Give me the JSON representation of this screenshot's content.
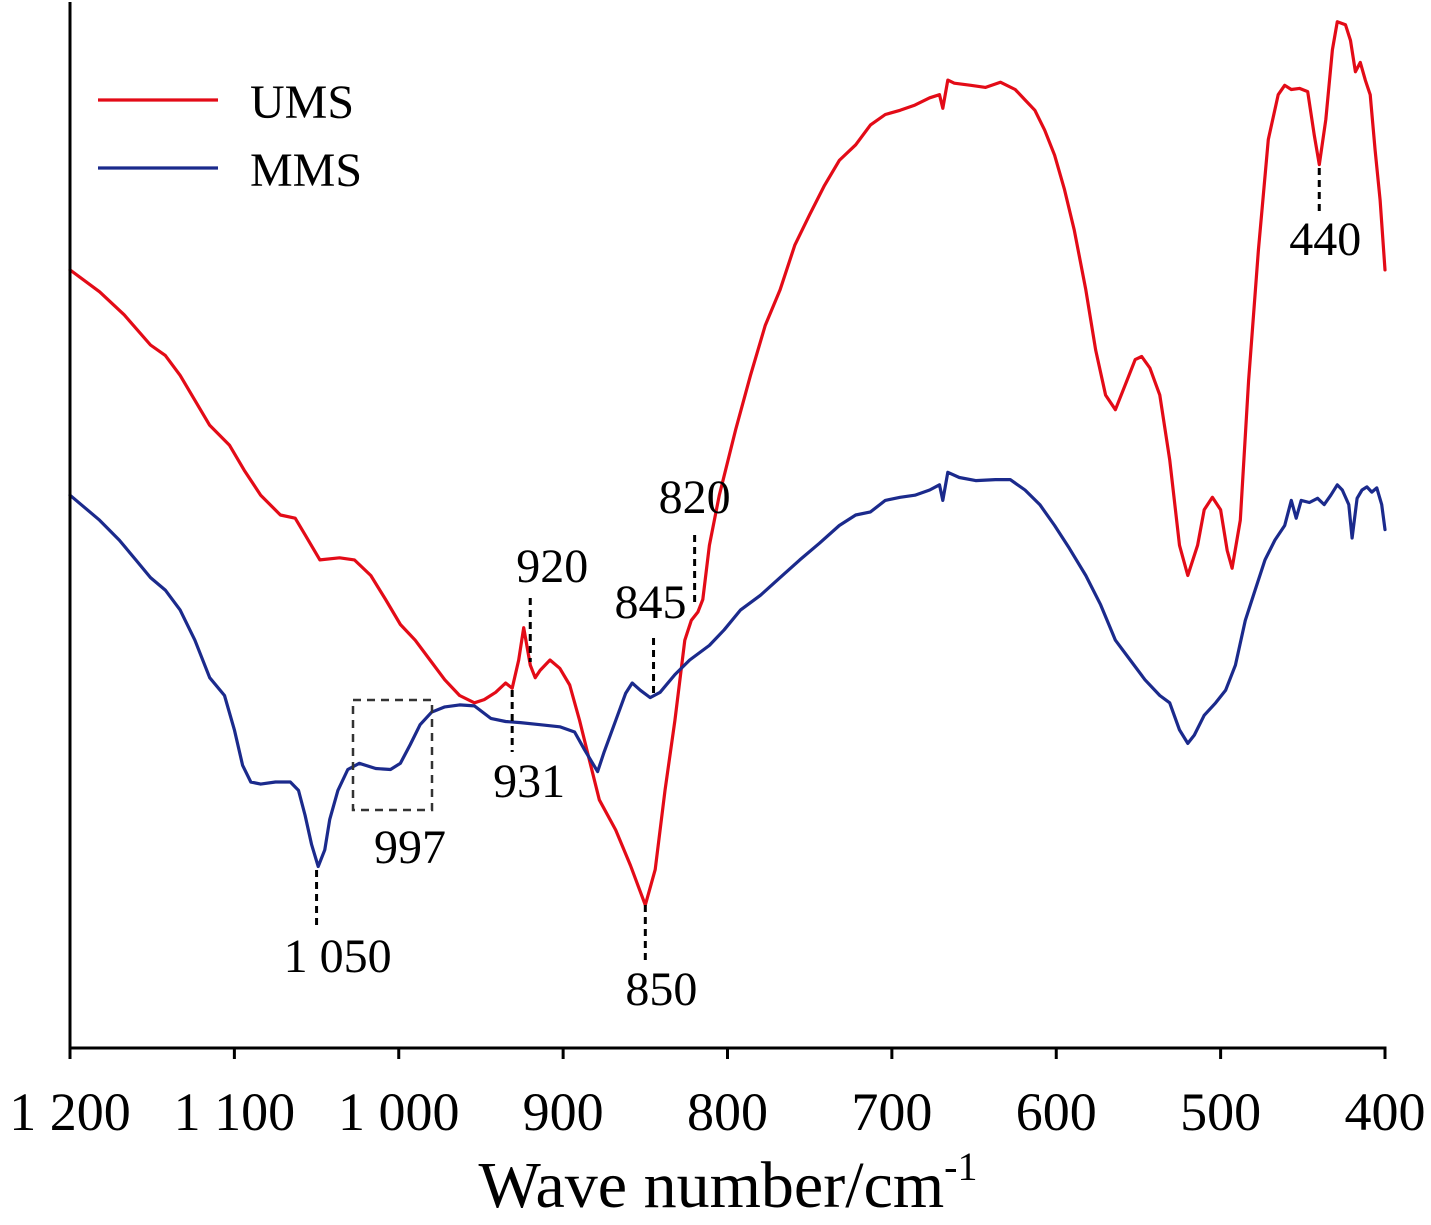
{
  "chart_data": {
    "type": "line",
    "xlabel": "Wave number/cm",
    "xlabel_superscript": "-1",
    "ylabel": "",
    "xlim": [
      1200,
      400
    ],
    "ylim": [
      0,
      100
    ],
    "x_reversed": true,
    "y_tick_labels_shown": false,
    "grid": false,
    "legend": {
      "position": "top-left"
    },
    "x_ticks": [
      1200,
      1100,
      1000,
      900,
      800,
      700,
      600,
      500,
      400
    ],
    "x_tick_labels": [
      "1 200",
      "1 100",
      "1 000",
      "900",
      "800",
      "700",
      "600",
      "500",
      "400"
    ],
    "series": [
      {
        "name": "UMS",
        "color": "#E30B17",
        "points": [
          [
            1200,
            74.6
          ],
          [
            1182,
            72.5
          ],
          [
            1167,
            70.3
          ],
          [
            1151,
            67.4
          ],
          [
            1142,
            66.4
          ],
          [
            1133,
            64.5
          ],
          [
            1124,
            62.1
          ],
          [
            1115,
            59.7
          ],
          [
            1103,
            57.8
          ],
          [
            1094,
            55.4
          ],
          [
            1084,
            53.0
          ],
          [
            1072,
            51.1
          ],
          [
            1063,
            50.8
          ],
          [
            1057,
            49.2
          ],
          [
            1048,
            46.8
          ],
          [
            1036,
            47.0
          ],
          [
            1027,
            46.8
          ],
          [
            1017,
            45.3
          ],
          [
            1008,
            43.0
          ],
          [
            999,
            40.6
          ],
          [
            990,
            39.1
          ],
          [
            981,
            37.2
          ],
          [
            972,
            35.3
          ],
          [
            963,
            33.8
          ],
          [
            954,
            33.1
          ],
          [
            948,
            33.4
          ],
          [
            941,
            34.1
          ],
          [
            935,
            35.0
          ],
          [
            931,
            34.5
          ],
          [
            927,
            37.2
          ],
          [
            924,
            40.3
          ],
          [
            920,
            36.7
          ],
          [
            917,
            35.5
          ],
          [
            914,
            36.2
          ],
          [
            908,
            37.2
          ],
          [
            902,
            36.4
          ],
          [
            896,
            34.8
          ],
          [
            890,
            31.4
          ],
          [
            884,
            27.6
          ],
          [
            878,
            23.8
          ],
          [
            868,
            20.9
          ],
          [
            859,
            17.5
          ],
          [
            850,
            13.7
          ],
          [
            844,
            17.1
          ],
          [
            838,
            24.7
          ],
          [
            832,
            31.4
          ],
          [
            826,
            39.1
          ],
          [
            822,
            41.0
          ],
          [
            818,
            41.8
          ],
          [
            815,
            43.0
          ],
          [
            811,
            48.2
          ],
          [
            805,
            53.0
          ],
          [
            795,
            59.3
          ],
          [
            786,
            64.5
          ],
          [
            777,
            69.3
          ],
          [
            768,
            72.7
          ],
          [
            759,
            77.0
          ],
          [
            750,
            79.9
          ],
          [
            741,
            82.7
          ],
          [
            732,
            85.1
          ],
          [
            722,
            86.6
          ],
          [
            713,
            88.5
          ],
          [
            704,
            89.5
          ],
          [
            695,
            89.9
          ],
          [
            686,
            90.4
          ],
          [
            677,
            91.1
          ],
          [
            671,
            91.4
          ],
          [
            669,
            90.1
          ],
          [
            666,
            92.8
          ],
          [
            662,
            92.5
          ],
          [
            652,
            92.3
          ],
          [
            643,
            92.1
          ],
          [
            634,
            92.6
          ],
          [
            625,
            91.9
          ],
          [
            619,
            90.9
          ],
          [
            613,
            89.9
          ],
          [
            607,
            88.0
          ],
          [
            601,
            85.6
          ],
          [
            595,
            82.3
          ],
          [
            589,
            78.4
          ],
          [
            582,
            72.7
          ],
          [
            576,
            66.9
          ],
          [
            570,
            62.6
          ],
          [
            564,
            61.2
          ],
          [
            558,
            63.6
          ],
          [
            552,
            66.0
          ],
          [
            548,
            66.3
          ],
          [
            543,
            65.2
          ],
          [
            537,
            62.6
          ],
          [
            531,
            56.4
          ],
          [
            525,
            48.2
          ],
          [
            520,
            45.3
          ],
          [
            514,
            48.2
          ],
          [
            510,
            51.6
          ],
          [
            505,
            52.8
          ],
          [
            500,
            51.6
          ],
          [
            496,
            47.7
          ],
          [
            493,
            46.0
          ],
          [
            488,
            50.6
          ],
          [
            483,
            64.0
          ],
          [
            477,
            76.5
          ],
          [
            471,
            87.1
          ],
          [
            465,
            91.4
          ],
          [
            461,
            92.3
          ],
          [
            457,
            91.9
          ],
          [
            452,
            92.0
          ],
          [
            447,
            91.7
          ],
          [
            443,
            87.5
          ],
          [
            440,
            84.7
          ],
          [
            436,
            89.0
          ],
          [
            432,
            95.7
          ],
          [
            429,
            98.4
          ],
          [
            424,
            98.1
          ],
          [
            421,
            96.6
          ],
          [
            418,
            93.6
          ],
          [
            415,
            94.5
          ],
          [
            412,
            92.8
          ],
          [
            409,
            91.4
          ],
          [
            406,
            86.1
          ],
          [
            403,
            81.3
          ],
          [
            400,
            74.6
          ]
        ]
      },
      {
        "name": "MMS",
        "color": "#1B2A8C",
        "points": [
          [
            1200,
            53.0
          ],
          [
            1191,
            51.8
          ],
          [
            1182,
            50.6
          ],
          [
            1170,
            48.7
          ],
          [
            1160,
            46.8
          ],
          [
            1151,
            45.1
          ],
          [
            1142,
            43.9
          ],
          [
            1133,
            42.0
          ],
          [
            1124,
            39.1
          ],
          [
            1115,
            35.5
          ],
          [
            1106,
            33.8
          ],
          [
            1100,
            30.5
          ],
          [
            1095,
            27.1
          ],
          [
            1090,
            25.5
          ],
          [
            1084,
            25.3
          ],
          [
            1075,
            25.5
          ],
          [
            1066,
            25.5
          ],
          [
            1061,
            24.7
          ],
          [
            1057,
            22.3
          ],
          [
            1053,
            19.5
          ],
          [
            1049,
            17.4
          ],
          [
            1045,
            19.0
          ],
          [
            1042,
            21.9
          ],
          [
            1037,
            24.7
          ],
          [
            1031,
            26.7
          ],
          [
            1024,
            27.3
          ],
          [
            1014,
            26.8
          ],
          [
            1005,
            26.7
          ],
          [
            999,
            27.3
          ],
          [
            993,
            29.1
          ],
          [
            987,
            31.0
          ],
          [
            980,
            32.2
          ],
          [
            972,
            32.7
          ],
          [
            963,
            32.9
          ],
          [
            954,
            32.8
          ],
          [
            944,
            31.6
          ],
          [
            935,
            31.3
          ],
          [
            926,
            31.2
          ],
          [
            914,
            31.0
          ],
          [
            902,
            30.8
          ],
          [
            893,
            30.3
          ],
          [
            887,
            28.6
          ],
          [
            879,
            26.5
          ],
          [
            875,
            28.4
          ],
          [
            868,
            31.4
          ],
          [
            862,
            34.0
          ],
          [
            858,
            35.0
          ],
          [
            853,
            34.3
          ],
          [
            847,
            33.6
          ],
          [
            841,
            34.1
          ],
          [
            832,
            35.8
          ],
          [
            823,
            37.2
          ],
          [
            811,
            38.6
          ],
          [
            802,
            40.1
          ],
          [
            792,
            42.0
          ],
          [
            780,
            43.4
          ],
          [
            768,
            45.1
          ],
          [
            756,
            46.8
          ],
          [
            744,
            48.4
          ],
          [
            732,
            50.1
          ],
          [
            722,
            51.1
          ],
          [
            713,
            51.4
          ],
          [
            704,
            52.5
          ],
          [
            695,
            52.8
          ],
          [
            686,
            53.0
          ],
          [
            677,
            53.5
          ],
          [
            671,
            54.0
          ],
          [
            669,
            52.5
          ],
          [
            666,
            55.2
          ],
          [
            659,
            54.7
          ],
          [
            649,
            54.4
          ],
          [
            637,
            54.5
          ],
          [
            628,
            54.5
          ],
          [
            619,
            53.5
          ],
          [
            610,
            52.1
          ],
          [
            601,
            50.1
          ],
          [
            592,
            47.9
          ],
          [
            582,
            45.3
          ],
          [
            573,
            42.5
          ],
          [
            564,
            39.1
          ],
          [
            555,
            37.2
          ],
          [
            546,
            35.3
          ],
          [
            537,
            33.8
          ],
          [
            531,
            33.1
          ],
          [
            525,
            30.5
          ],
          [
            520,
            29.2
          ],
          [
            516,
            30.0
          ],
          [
            510,
            31.9
          ],
          [
            503,
            33.1
          ],
          [
            497,
            34.3
          ],
          [
            491,
            36.7
          ],
          [
            485,
            41.0
          ],
          [
            479,
            43.9
          ],
          [
            473,
            46.8
          ],
          [
            467,
            48.7
          ],
          [
            461,
            50.1
          ],
          [
            457,
            52.5
          ],
          [
            454,
            50.8
          ],
          [
            451,
            52.5
          ],
          [
            446,
            52.3
          ],
          [
            441,
            52.7
          ],
          [
            437,
            52.1
          ],
          [
            433,
            53.0
          ],
          [
            429,
            54.0
          ],
          [
            426,
            53.5
          ],
          [
            422,
            52.1
          ],
          [
            420,
            48.9
          ],
          [
            417,
            52.7
          ],
          [
            414,
            53.5
          ],
          [
            411,
            53.8
          ],
          [
            408,
            53.3
          ],
          [
            405,
            53.7
          ],
          [
            402,
            52.1
          ],
          [
            400,
            49.7
          ]
        ]
      }
    ],
    "annotations": [
      {
        "text": "1 050",
        "x": 1050
      },
      {
        "text": "997",
        "x": 997,
        "style": "dashed-box"
      },
      {
        "text": "931",
        "x": 931
      },
      {
        "text": "920",
        "x": 920
      },
      {
        "text": "850",
        "x": 850
      },
      {
        "text": "845",
        "x": 845
      },
      {
        "text": "820",
        "x": 820
      },
      {
        "text": "440",
        "x": 440
      }
    ]
  }
}
